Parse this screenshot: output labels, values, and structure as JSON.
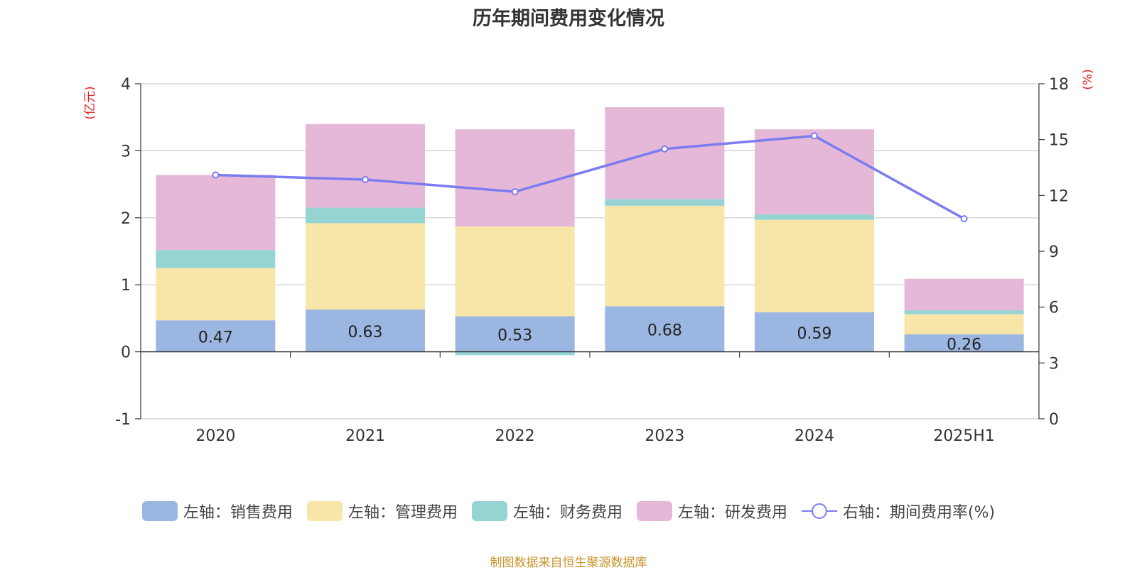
{
  "chart_data": {
    "type": "bar",
    "title": "历年期间费用变化情况",
    "categories": [
      "2020",
      "2021",
      "2022",
      "2023",
      "2024",
      "2025H1"
    ],
    "left_axis": {
      "unit_label": "(亿元)",
      "ylim": [
        -1,
        4
      ],
      "ticks": [
        -1,
        0,
        1,
        2,
        3,
        4
      ]
    },
    "right_axis": {
      "unit_label": "(%)",
      "ylim": [
        0,
        18
      ],
      "ticks": [
        0,
        3,
        6,
        9,
        12,
        15,
        18
      ]
    },
    "grid": true,
    "series": [
      {
        "name": "左轴：销售费用",
        "type": "bar",
        "axis": "left",
        "color": "#9bb6e0",
        "values": [
          0.47,
          0.63,
          0.53,
          0.68,
          0.59,
          0.26
        ],
        "show_labels": true
      },
      {
        "name": "左轴：管理费用",
        "type": "bar",
        "axis": "left",
        "color": "#f8e6a8",
        "values": [
          0.78,
          1.29,
          1.34,
          1.5,
          1.38,
          0.3
        ]
      },
      {
        "name": "左轴：财务费用",
        "type": "bar",
        "axis": "left",
        "color": "#96d4d4",
        "values": [
          0.27,
          0.23,
          -0.05,
          0.1,
          0.08,
          0.06
        ]
      },
      {
        "name": "左轴：研发费用",
        "type": "bar",
        "axis": "left",
        "color": "#e6b8d8",
        "values": [
          1.12,
          1.25,
          1.45,
          1.37,
          1.27,
          0.47
        ]
      },
      {
        "name": "右轴：期间费用率(%)",
        "type": "line",
        "axis": "right",
        "color": "#7b7cf0",
        "values": [
          13.1,
          12.85,
          12.2,
          14.5,
          15.2,
          10.75
        ]
      }
    ],
    "legend_position": "bottom",
    "source": "制图数据来自恒生聚源数据库"
  }
}
